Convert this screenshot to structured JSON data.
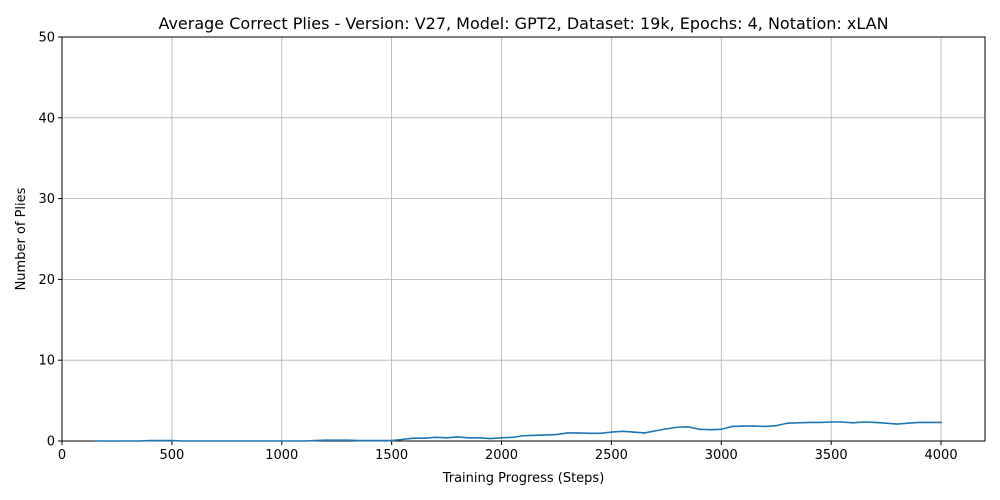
{
  "chart_data": {
    "type": "line",
    "title": "Average Correct Plies - Version: V27, Model: GPT2, Dataset: 19k, Epochs: 4, Notation: xLAN",
    "xlabel": "Training Progress (Steps)",
    "ylabel": "Number of Plies",
    "xlim": [
      0,
      4200
    ],
    "ylim": [
      0,
      50
    ],
    "xticks": [
      0,
      500,
      1000,
      1500,
      2000,
      2500,
      3000,
      3500,
      4000
    ],
    "yticks": [
      0,
      10,
      20,
      30,
      40,
      50
    ],
    "grid": true,
    "series": [
      {
        "color": "#1f77b4",
        "x": [
          150,
          200,
          250,
          300,
          350,
          400,
          450,
          500,
          550,
          600,
          650,
          700,
          750,
          800,
          850,
          900,
          950,
          1000,
          1050,
          1100,
          1150,
          1200,
          1250,
          1300,
          1350,
          1400,
          1450,
          1500,
          1550,
          1600,
          1650,
          1700,
          1750,
          1800,
          1850,
          1900,
          1950,
          2000,
          2050,
          2100,
          2150,
          2200,
          2250,
          2300,
          2350,
          2400,
          2450,
          2500,
          2550,
          2600,
          2650,
          2700,
          2750,
          2800,
          2850,
          2900,
          2950,
          3000,
          3050,
          3100,
          3150,
          3200,
          3250,
          3300,
          3350,
          3400,
          3450,
          3500,
          3550,
          3600,
          3650,
          3700,
          3750,
          3800,
          3850,
          3900,
          3950,
          4000
        ],
        "y": [
          0.0,
          0.0,
          0.0,
          0.0,
          0.0,
          0.05,
          0.05,
          0.05,
          0.0,
          0.0,
          0.0,
          0.0,
          0.0,
          0.0,
          0.0,
          0.0,
          0.0,
          0.0,
          0.0,
          0.0,
          0.05,
          0.1,
          0.1,
          0.1,
          0.05,
          0.05,
          0.05,
          0.05,
          0.2,
          0.35,
          0.35,
          0.45,
          0.4,
          0.5,
          0.4,
          0.4,
          0.3,
          0.4,
          0.45,
          0.65,
          0.7,
          0.75,
          0.8,
          1.0,
          1.0,
          0.95,
          0.95,
          1.1,
          1.2,
          1.1,
          1.0,
          1.25,
          1.5,
          1.7,
          1.75,
          1.45,
          1.4,
          1.45,
          1.8,
          1.85,
          1.85,
          1.8,
          1.9,
          2.2,
          2.25,
          2.3,
          2.3,
          2.35,
          2.35,
          2.25,
          2.35,
          2.3,
          2.2,
          2.1,
          2.2,
          2.3,
          2.3,
          2.3
        ]
      }
    ]
  }
}
